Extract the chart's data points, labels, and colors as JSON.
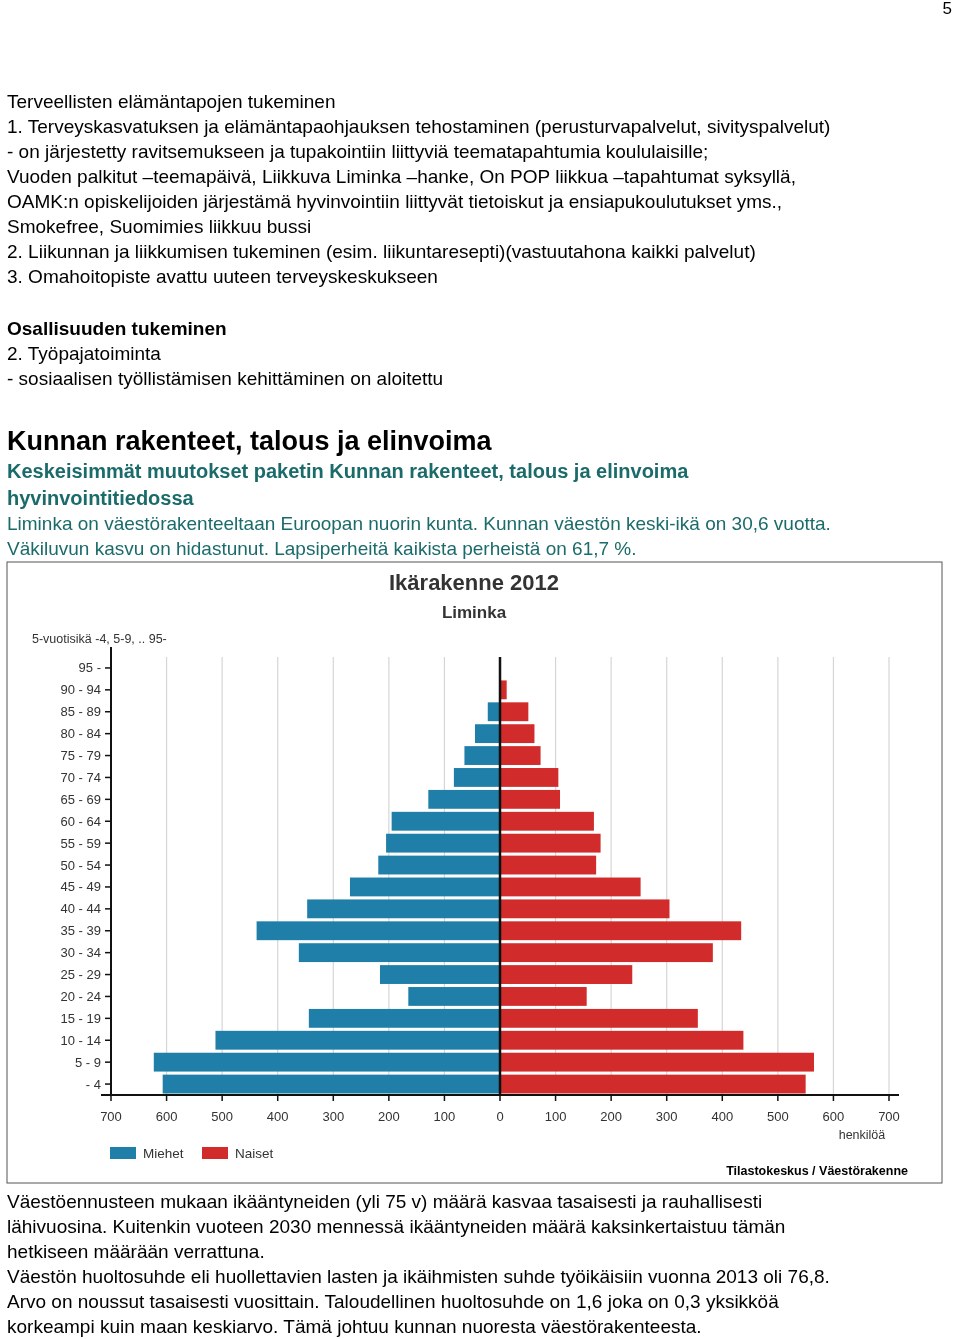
{
  "chart_data": {
    "type": "bar",
    "orientation": "horizontal",
    "stacked": true,
    "title": "Ikärakenne 2012",
    "subtitle": "Liminka",
    "ylabel": "5-vuotisikä -4, 5-9, .. 95-",
    "xlabel": "henkilöä",
    "categories": [
      "95 -",
      "90 - 94",
      "85 - 89",
      "80 - 84",
      "75 - 79",
      "70 - 74",
      "65 - 69",
      "60 - 64",
      "55 - 59",
      "50 - 54",
      "45 - 49",
      "40 - 44",
      "35 - 39",
      "30 - 34",
      "25 - 29",
      "20 - 24",
      "15 - 19",
      "10 - 14",
      "5 - 9",
      "- 4"
    ],
    "series": [
      {
        "name": "Miehet",
        "color": "#1f7fa8",
        "values": [
          0,
          0,
          -22,
          -45,
          -64,
          -83,
          -129,
          -195,
          -205,
          -219,
          -270,
          -347,
          -438,
          -362,
          -216,
          -165,
          -344,
          -512,
          -623,
          -607
        ]
      },
      {
        "name": "Naiset",
        "color": "#d12b2b",
        "values": [
          0,
          12,
          51,
          62,
          73,
          105,
          108,
          169,
          181,
          173,
          253,
          305,
          434,
          383,
          238,
          156,
          356,
          438,
          565,
          550
        ]
      }
    ],
    "xlim": [
      -700,
      700
    ],
    "xticks": [
      {
        "value": -700,
        "label": "700"
      },
      {
        "value": -600,
        "label": "600"
      },
      {
        "value": -500,
        "label": "500"
      },
      {
        "value": -400,
        "label": "400"
      },
      {
        "value": -300,
        "label": "300"
      },
      {
        "value": -200,
        "label": "200"
      },
      {
        "value": -100,
        "label": "100"
      },
      0,
      100,
      200,
      300,
      400,
      500,
      600,
      700
    ],
    "grid": "x",
    "legend": "bottom left",
    "annotations": [
      "5",
      "Terveellisten elämäntapojen tukeminen",
      "1. Terveyskasvatuksen ja elämäntapaohjauksen tehostaminen (perusturvapalvelut, sivityspalvelut)",
      "- on järjestetty ravitsemukseen ja tupakointiin liittyviä teematapahtumia koululaisille;",
      "Vuoden palkitut –teemapäivä, Liikkuva Liminka –hanke, On POP liikkua –tapahtumat syksyllä,",
      "OAMK:n opiskelijoiden järjestämä hyvinvointiin liittyvät tietoiskut ja ensiapukoulutukset yms.,",
      "Smokefree, Suomimies liikkuu bussi",
      "2. Liikunnan ja liikkumisen tukeminen (esim. liikuntaresepti)(vastuutahona kaikki palvelut)",
      "3. Omahoitopiste avattu uuteen terveyskeskukseen",
      "Osallisuuden tukeminen",
      "2. Työpajatoiminta",
      "- sosiaalisen työllistämisen kehittäminen on aloitettu",
      "Kunnan rakenteet, talous ja elinvoima",
      "Keskeisimmät muutokset paketin Kunnan rakenteet, talous ja elinvoima",
      "hyvinvointitiedossa",
      "Liminka on väestörakenteeltaan Euroopan nuorin kunta. Kunnan väestön keski-ikä on 30,6 vuotta.",
      "Väkiluvun kasvu on hidastunut. Lapsiperheitä kaikista perheistä on 61,7 %.",
      "Tilastokeskus / Väestörakenne",
      "Väestöennusteen mukaan ikääntyneiden (yli 75 v) määrä kasvaa tasaisesti ja rauhallisesti",
      "lähivuosina. Kuitenkin vuoteen 2030 mennessä ikääntyneiden määrä kaksinkertaistuu tämän",
      "hetkiseen määrään verrattuna.",
      "Väestön huoltosuhde eli huollettavien lasten ja ikäihmisten suhde työikäisiin vuonna 2013 oli 76,8.",
      "Arvo on noussut tasaisesti vuosittain. Taloudellinen huoltosuhde on 1,6 joka on 0,3 yksikköä",
      "korkeampi kuin maan keskiarvo. Tämä johtuu kunnan nuoresta väestörakenteesta."
    ]
  }
}
